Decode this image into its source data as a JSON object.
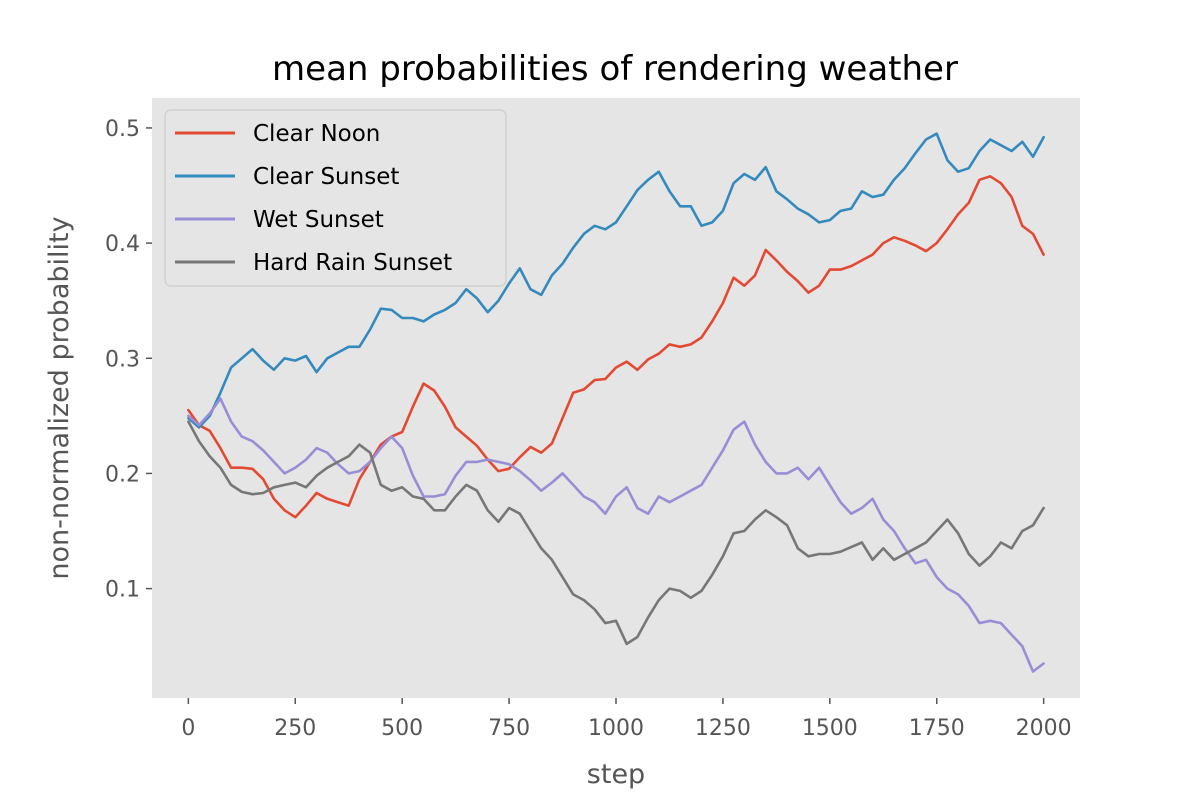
{
  "chart_data": {
    "type": "line",
    "title": "mean probabilities of rendering weather",
    "xlabel": "step",
    "ylabel": "non-normalized probability",
    "xlim": [
      -85,
      2085
    ],
    "ylim": [
      0.005,
      0.526
    ],
    "xticks": [
      0,
      250,
      500,
      750,
      1000,
      1250,
      1500,
      1750,
      2000
    ],
    "yticks": [
      0.1,
      0.2,
      0.3,
      0.4,
      0.5
    ],
    "xtick_labels": [
      "0",
      "250",
      "500",
      "750",
      "1000",
      "1250",
      "1500",
      "1750",
      "2000"
    ],
    "ytick_labels": [
      "0.1",
      "0.2",
      "0.3",
      "0.4",
      "0.5"
    ],
    "grid": false,
    "background": "#e5e5e5",
    "legend_position": "top-left",
    "series": [
      {
        "name": "Clear Noon",
        "color": "#e24a33",
        "x": [
          0,
          25,
          50,
          75,
          100,
          125,
          150,
          175,
          200,
          225,
          250,
          275,
          300,
          325,
          350,
          375,
          400,
          425,
          450,
          475,
          500,
          525,
          550,
          575,
          600,
          625,
          650,
          675,
          700,
          725,
          750,
          775,
          800,
          825,
          850,
          875,
          900,
          925,
          950,
          975,
          1000,
          1025,
          1050,
          1075,
          1100,
          1125,
          1150,
          1175,
          1200,
          1225,
          1250,
          1275,
          1300,
          1325,
          1350,
          1375,
          1400,
          1425,
          1450,
          1475,
          1500,
          1525,
          1550,
          1575,
          1600,
          1625,
          1650,
          1675,
          1700,
          1725,
          1750,
          1775,
          1800,
          1825,
          1850,
          1875,
          1900,
          1925,
          1950,
          1975,
          2000
        ],
        "values": [
          0.255,
          0.242,
          0.237,
          0.222,
          0.205,
          0.205,
          0.204,
          0.195,
          0.178,
          0.168,
          0.162,
          0.172,
          0.183,
          0.178,
          0.175,
          0.172,
          0.195,
          0.21,
          0.225,
          0.232,
          0.236,
          0.258,
          0.278,
          0.272,
          0.258,
          0.24,
          0.232,
          0.224,
          0.212,
          0.202,
          0.204,
          0.214,
          0.223,
          0.218,
          0.226,
          0.248,
          0.27,
          0.273,
          0.281,
          0.282,
          0.292,
          0.297,
          0.29,
          0.299,
          0.304,
          0.312,
          0.31,
          0.312,
          0.318,
          0.332,
          0.348,
          0.37,
          0.363,
          0.372,
          0.394,
          0.385,
          0.375,
          0.367,
          0.357,
          0.363,
          0.377,
          0.377,
          0.38,
          0.385,
          0.39,
          0.4,
          0.405,
          0.402,
          0.398,
          0.393,
          0.4,
          0.412,
          0.425,
          0.435,
          0.455,
          0.458,
          0.452,
          0.44,
          0.415,
          0.408,
          0.39
        ]
      },
      {
        "name": "Clear Sunset",
        "color": "#348abd",
        "x": [
          0,
          25,
          50,
          75,
          100,
          125,
          150,
          175,
          200,
          225,
          250,
          275,
          300,
          325,
          350,
          375,
          400,
          425,
          450,
          475,
          500,
          525,
          550,
          575,
          600,
          625,
          650,
          675,
          700,
          725,
          750,
          775,
          800,
          825,
          850,
          875,
          900,
          925,
          950,
          975,
          1000,
          1025,
          1050,
          1075,
          1100,
          1125,
          1150,
          1175,
          1200,
          1225,
          1250,
          1275,
          1300,
          1325,
          1350,
          1375,
          1400,
          1425,
          1450,
          1475,
          1500,
          1525,
          1550,
          1575,
          1600,
          1625,
          1650,
          1675,
          1700,
          1725,
          1750,
          1775,
          1800,
          1825,
          1850,
          1875,
          1900,
          1925,
          1950,
          1975,
          2000
        ],
        "values": [
          0.248,
          0.24,
          0.25,
          0.27,
          0.292,
          0.3,
          0.308,
          0.298,
          0.29,
          0.3,
          0.298,
          0.302,
          0.288,
          0.3,
          0.305,
          0.31,
          0.31,
          0.325,
          0.343,
          0.342,
          0.335,
          0.335,
          0.332,
          0.338,
          0.342,
          0.348,
          0.36,
          0.352,
          0.34,
          0.35,
          0.365,
          0.378,
          0.36,
          0.355,
          0.372,
          0.382,
          0.396,
          0.408,
          0.415,
          0.412,
          0.418,
          0.432,
          0.446,
          0.455,
          0.462,
          0.445,
          0.432,
          0.432,
          0.415,
          0.418,
          0.428,
          0.452,
          0.46,
          0.455,
          0.466,
          0.445,
          0.438,
          0.43,
          0.425,
          0.418,
          0.42,
          0.428,
          0.43,
          0.445,
          0.44,
          0.442,
          0.455,
          0.465,
          0.478,
          0.49,
          0.495,
          0.472,
          0.462,
          0.465,
          0.48,
          0.49,
          0.485,
          0.48,
          0.488,
          0.475,
          0.492
        ]
      },
      {
        "name": "Wet Sunset",
        "color": "#988ed5",
        "x": [
          0,
          25,
          50,
          75,
          100,
          125,
          150,
          175,
          200,
          225,
          250,
          275,
          300,
          325,
          350,
          375,
          400,
          425,
          450,
          475,
          500,
          525,
          550,
          575,
          600,
          625,
          650,
          675,
          700,
          725,
          750,
          775,
          800,
          825,
          850,
          875,
          900,
          925,
          950,
          975,
          1000,
          1025,
          1050,
          1075,
          1100,
          1125,
          1150,
          1175,
          1200,
          1225,
          1250,
          1275,
          1300,
          1325,
          1350,
          1375,
          1400,
          1425,
          1450,
          1475,
          1500,
          1525,
          1550,
          1575,
          1600,
          1625,
          1650,
          1675,
          1700,
          1725,
          1750,
          1775,
          1800,
          1825,
          1850,
          1875,
          1900,
          1925,
          1950,
          1975,
          2000
        ],
        "values": [
          0.25,
          0.242,
          0.252,
          0.265,
          0.245,
          0.232,
          0.228,
          0.22,
          0.21,
          0.2,
          0.205,
          0.212,
          0.222,
          0.218,
          0.208,
          0.2,
          0.202,
          0.21,
          0.222,
          0.232,
          0.222,
          0.198,
          0.18,
          0.18,
          0.182,
          0.198,
          0.21,
          0.21,
          0.212,
          0.21,
          0.208,
          0.202,
          0.194,
          0.185,
          0.192,
          0.2,
          0.19,
          0.18,
          0.175,
          0.165,
          0.18,
          0.188,
          0.17,
          0.165,
          0.18,
          0.175,
          0.18,
          0.185,
          0.19,
          0.205,
          0.22,
          0.238,
          0.245,
          0.225,
          0.21,
          0.2,
          0.2,
          0.205,
          0.195,
          0.205,
          0.19,
          0.175,
          0.165,
          0.17,
          0.178,
          0.16,
          0.15,
          0.135,
          0.122,
          0.125,
          0.11,
          0.1,
          0.095,
          0.085,
          0.07,
          0.072,
          0.07,
          0.06,
          0.05,
          0.028,
          0.035
        ]
      },
      {
        "name": "Hard Rain Sunset",
        "color": "#777777",
        "x": [
          0,
          25,
          50,
          75,
          100,
          125,
          150,
          175,
          200,
          225,
          250,
          275,
          300,
          325,
          350,
          375,
          400,
          425,
          450,
          475,
          500,
          525,
          550,
          575,
          600,
          625,
          650,
          675,
          700,
          725,
          750,
          775,
          800,
          825,
          850,
          875,
          900,
          925,
          950,
          975,
          1000,
          1025,
          1050,
          1075,
          1100,
          1125,
          1150,
          1175,
          1200,
          1225,
          1250,
          1275,
          1300,
          1325,
          1350,
          1375,
          1400,
          1425,
          1450,
          1475,
          1500,
          1525,
          1550,
          1575,
          1600,
          1625,
          1650,
          1675,
          1700,
          1725,
          1750,
          1775,
          1800,
          1825,
          1850,
          1875,
          1900,
          1925,
          1950,
          1975,
          2000
        ],
        "values": [
          0.245,
          0.228,
          0.215,
          0.205,
          0.19,
          0.184,
          0.182,
          0.183,
          0.188,
          0.19,
          0.192,
          0.188,
          0.198,
          0.205,
          0.21,
          0.215,
          0.225,
          0.218,
          0.19,
          0.185,
          0.188,
          0.18,
          0.178,
          0.168,
          0.168,
          0.18,
          0.19,
          0.185,
          0.168,
          0.158,
          0.17,
          0.165,
          0.15,
          0.135,
          0.125,
          0.11,
          0.095,
          0.09,
          0.082,
          0.07,
          0.072,
          0.052,
          0.058,
          0.075,
          0.09,
          0.1,
          0.098,
          0.092,
          0.098,
          0.112,
          0.128,
          0.148,
          0.15,
          0.16,
          0.168,
          0.162,
          0.155,
          0.135,
          0.128,
          0.13,
          0.13,
          0.132,
          0.136,
          0.14,
          0.125,
          0.135,
          0.125,
          0.13,
          0.135,
          0.14,
          0.15,
          0.16,
          0.148,
          0.13,
          0.12,
          0.128,
          0.14,
          0.135,
          0.15,
          0.155,
          0.17
        ]
      }
    ]
  }
}
